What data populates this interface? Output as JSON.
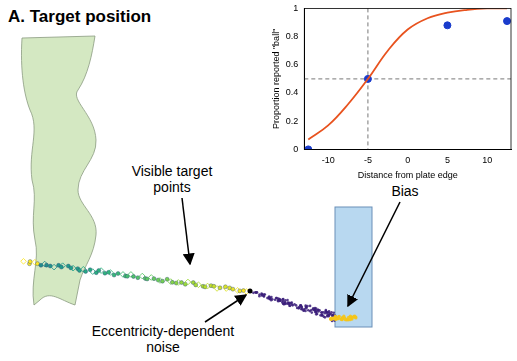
{
  "title": "A. Target position",
  "annotations": {
    "visible_points": [
      "Visible target",
      "points"
    ],
    "noise": [
      "Eccentricity-dependent",
      "noise"
    ],
    "bias": [
      "Bias"
    ]
  },
  "chart_data": {
    "type": "scatter",
    "x_label": "Distance from plate edge",
    "y_label": "Proportion reported \"ball\"",
    "xlim": [
      -13,
      13
    ],
    "xticks": [
      -10,
      -5,
      0,
      5,
      10
    ],
    "ylim": [
      0,
      1
    ],
    "yticks": [
      0,
      0.2,
      0.4,
      0.6,
      0.8,
      1
    ],
    "grid": false,
    "vline": -5,
    "hline": 0.5,
    "series": [
      {
        "type": "line",
        "color": "#e8531f",
        "line_style": "solid",
        "x": [
          -12.5,
          -10,
          -7.5,
          -5,
          -2.5,
          0,
          2.5,
          5,
          7.5,
          10,
          12.5
        ],
        "values": [
          0.07,
          0.17,
          0.32,
          0.5,
          0.7,
          0.85,
          0.93,
          0.97,
          0.99,
          1.0,
          1.0
        ]
      },
      {
        "type": "scatter",
        "color": "#1a3ccc",
        "marker": "circle",
        "x": [
          -12.5,
          -5,
          5,
          12.5
        ],
        "values": [
          0,
          0.5,
          0.88,
          0.91
        ]
      }
    ]
  }
}
